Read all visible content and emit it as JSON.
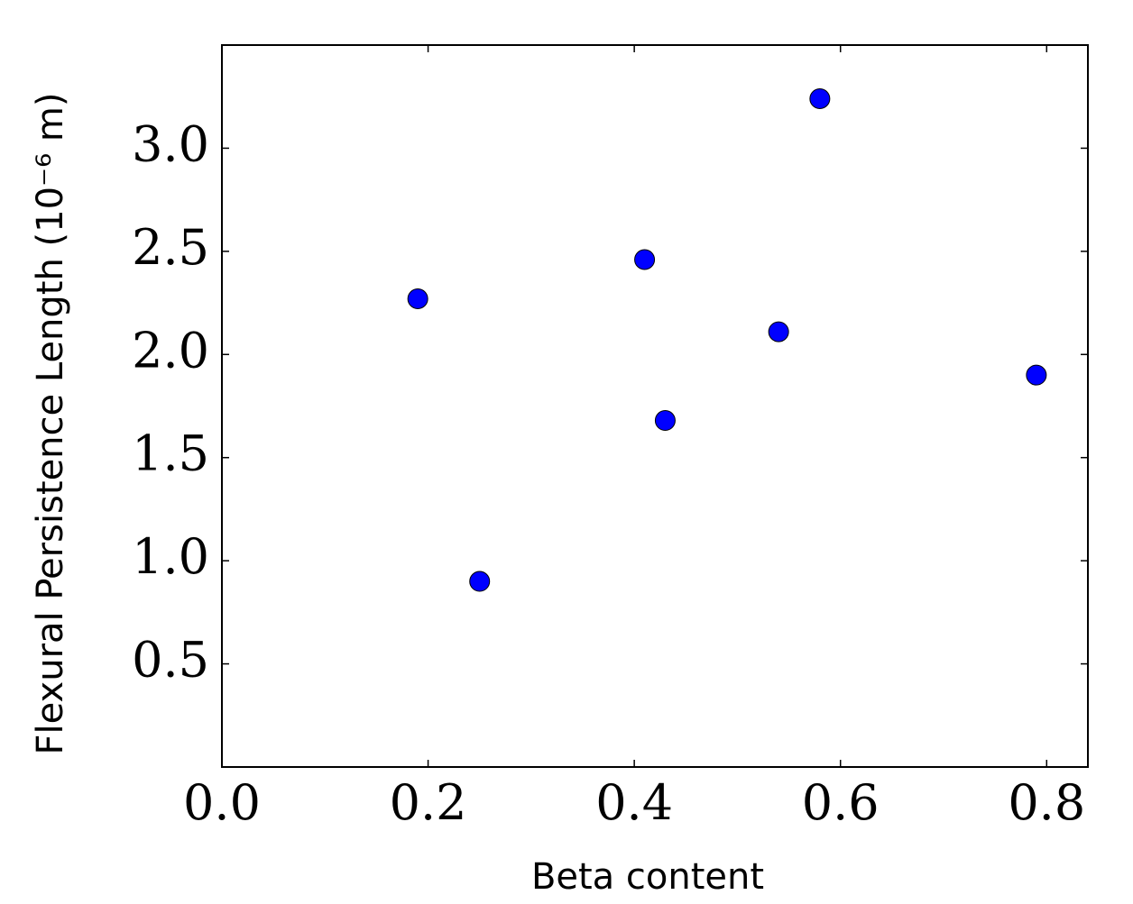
{
  "chart_data": {
    "type": "scatter",
    "x_label": "Beta content",
    "y_label": "Flexural Persistence Length (10⁻⁶ m)",
    "x": [
      0.19,
      0.25,
      0.41,
      0.43,
      0.54,
      0.58,
      0.79
    ],
    "values": [
      2.27,
      0.9,
      2.46,
      1.68,
      2.11,
      3.24,
      1.9
    ],
    "color": "#0000ff",
    "xlim": [
      0,
      0.84
    ],
    "ylim": [
      0,
      3.5
    ],
    "xticks": [
      {
        "value": 0,
        "label": "0.0"
      },
      0.2,
      0.4,
      0.6,
      0.8
    ],
    "yticks": [
      0.5,
      {
        "value": 1,
        "label": "1.0"
      },
      1.5,
      {
        "value": 2,
        "label": "2.0"
      },
      2.5,
      {
        "value": 3,
        "label": "3.0"
      }
    ],
    "grid": false
  }
}
